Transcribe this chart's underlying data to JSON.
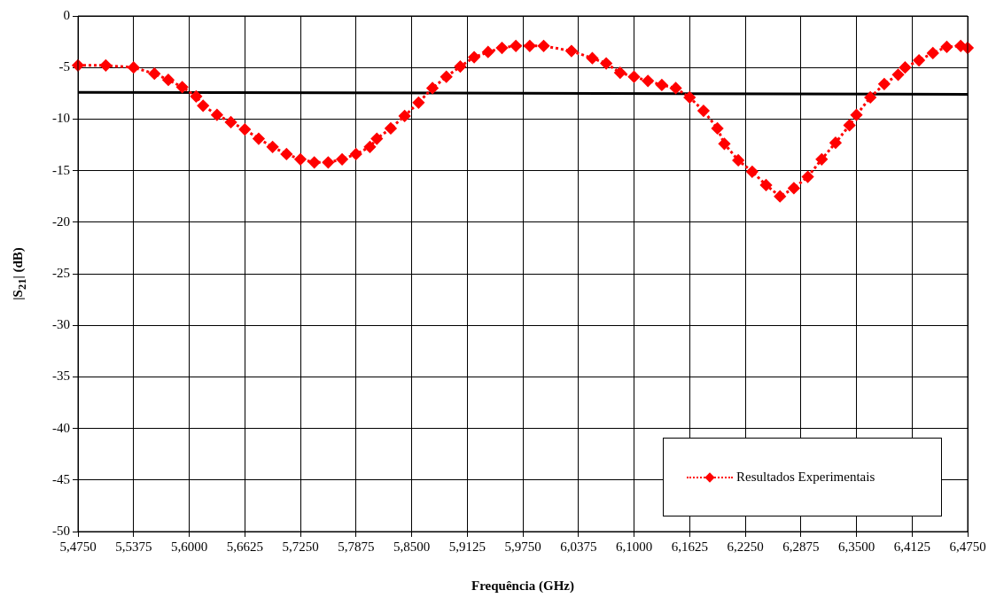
{
  "chart_data": {
    "type": "line",
    "xlabel": "Frequência (GHz)",
    "ylabel": "|S$_{21}$| (dB)",
    "categories": [
      "5,4750",
      null,
      null,
      null,
      null,
      null,
      null,
      null,
      "5,5375",
      null,
      null,
      null,
      null,
      null,
      null,
      null,
      "5,6000",
      null,
      null,
      null,
      null,
      null,
      null,
      null,
      "5,6625",
      null,
      null,
      null,
      null,
      null,
      null,
      null,
      "5,7250",
      null,
      null,
      null,
      null,
      null,
      null,
      null,
      "5,7875",
      null,
      null,
      null,
      null,
      null,
      null,
      null,
      "5,8500",
      null,
      null,
      null,
      null,
      null,
      null,
      null,
      "5,9125",
      null,
      null,
      null,
      null,
      null,
      null,
      null,
      "5,9750",
      null,
      null,
      null,
      null,
      null,
      null,
      null,
      "6,0375",
      null,
      null,
      null,
      null,
      null,
      null,
      null,
      "6,1000",
      null,
      null,
      null,
      null,
      null,
      null,
      null,
      "6,1625",
      null,
      null,
      null,
      null,
      null,
      null,
      null,
      "6,2250",
      null,
      null,
      null,
      null,
      null,
      null,
      null,
      "6,2875",
      null,
      null,
      null,
      null,
      null,
      null,
      null,
      "6,3500",
      null,
      null,
      null,
      null,
      null,
      null,
      null,
      "6,4125",
      null,
      null,
      null,
      null,
      null,
      null,
      null,
      "6,4750"
    ],
    "ylim": [
      -50,
      0
    ],
    "yticks": [
      -50,
      -45,
      -40,
      -35,
      -30,
      -25,
      -20,
      -15,
      -10,
      -5,
      0
    ],
    "grid": true,
    "legend": "bottom right",
    "series": [
      {
        "name": "Resultados Experimentais",
        "color": "#ff0000",
        "marker": "diamond",
        "line_style": "dotted",
        "values": [
          -4.8,
          null,
          null,
          null,
          -4.8,
          null,
          null,
          null,
          -5.0,
          null,
          null,
          -5.6,
          null,
          -6.2,
          null,
          -6.9,
          null,
          -7.8,
          -8.7,
          null,
          -9.6,
          null,
          -10.3,
          null,
          -11.0,
          null,
          -11.9,
          null,
          -12.7,
          null,
          -13.4,
          null,
          -13.9,
          null,
          -14.2,
          null,
          -14.2,
          null,
          -13.9,
          null,
          -13.4,
          null,
          -12.7,
          -11.9,
          null,
          -10.9,
          null,
          -9.7,
          null,
          -8.4,
          null,
          -7.0,
          null,
          -5.9,
          null,
          -4.9,
          null,
          -4.0,
          null,
          -3.5,
          null,
          -3.1,
          null,
          -2.9,
          null,
          -2.9,
          null,
          -2.9,
          null,
          null,
          null,
          -3.4,
          null,
          null,
          -4.1,
          null,
          -4.6,
          null,
          -5.5,
          null,
          -5.9,
          null,
          -6.3,
          null,
          -6.7,
          null,
          -7.0,
          null,
          -7.9,
          null,
          -9.2,
          null,
          -10.9,
          -12.4,
          null,
          -14.0,
          null,
          -15.1,
          null,
          -16.4,
          null,
          -17.5,
          null,
          -16.7,
          null,
          -15.6,
          null,
          -13.9,
          null,
          -12.3,
          null,
          -10.6,
          -9.6,
          null,
          -7.9,
          null,
          -6.6,
          null,
          -5.7,
          -5.0,
          null,
          -4.3,
          null,
          -3.6,
          null,
          -3.0,
          null,
          -2.9,
          -3.1
        ]
      },
      {
        "color": "#000000",
        "marker": "none",
        "line_style": "solid",
        "values": [
          -7.4,
          null,
          null,
          null,
          null,
          null,
          null,
          null,
          null,
          null,
          null,
          null,
          null,
          null,
          null,
          null,
          null,
          null,
          null,
          null,
          null,
          null,
          null,
          null,
          null,
          null,
          null,
          null,
          null,
          null,
          null,
          null,
          null,
          null,
          null,
          null,
          null,
          null,
          null,
          null,
          null,
          null,
          null,
          null,
          null,
          null,
          null,
          null,
          null,
          null,
          null,
          null,
          null,
          null,
          null,
          null,
          null,
          null,
          null,
          null,
          null,
          null,
          null,
          null,
          null,
          null,
          null,
          null,
          null,
          null,
          null,
          null,
          null,
          null,
          null,
          null,
          null,
          null,
          null,
          null,
          null,
          null,
          null,
          null,
          null,
          null,
          null,
          null,
          null,
          null,
          null,
          null,
          null,
          null,
          null,
          null,
          null,
          null,
          null,
          null,
          null,
          null,
          null,
          null,
          null,
          null,
          null,
          null,
          null,
          null,
          null,
          null,
          null,
          null,
          null,
          null,
          null,
          null,
          null,
          null,
          null,
          null,
          null,
          null,
          null,
          null,
          null,
          null,
          -7.6
        ]
      }
    ]
  }
}
